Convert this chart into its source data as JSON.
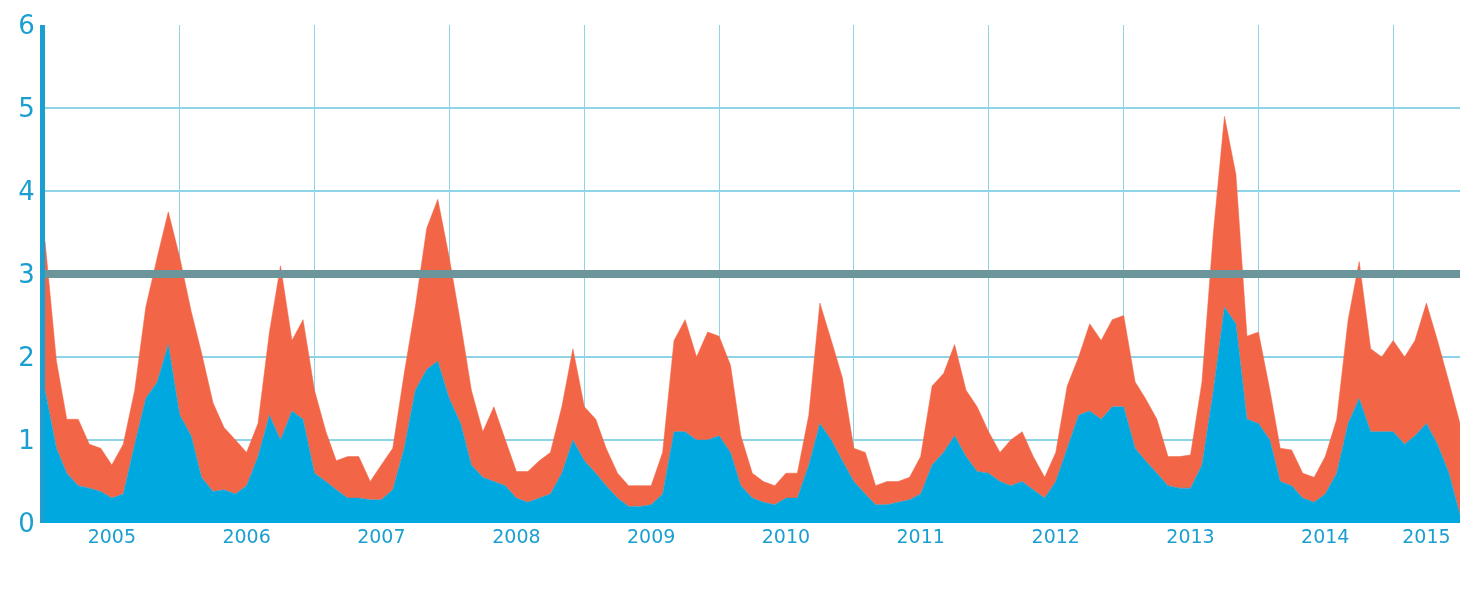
{
  "chart_data": {
    "type": "area",
    "stacked": true,
    "x": [
      "2005-01",
      "2005-02",
      "2005-03",
      "2005-04",
      "2005-05",
      "2005-06",
      "2005-07",
      "2005-08",
      "2005-09",
      "2005-10",
      "2005-11",
      "2005-12",
      "2006-01",
      "2006-02",
      "2006-03",
      "2006-04",
      "2006-05",
      "2006-06",
      "2006-07",
      "2006-08",
      "2006-09",
      "2006-10",
      "2006-11",
      "2006-12",
      "2007-01",
      "2007-02",
      "2007-03",
      "2007-04",
      "2007-05",
      "2007-06",
      "2007-07",
      "2007-08",
      "2007-09",
      "2007-10",
      "2007-11",
      "2007-12",
      "2008-01",
      "2008-02",
      "2008-03",
      "2008-04",
      "2008-05",
      "2008-06",
      "2008-07",
      "2008-08",
      "2008-09",
      "2008-10",
      "2008-11",
      "2008-12",
      "2009-01",
      "2009-02",
      "2009-03",
      "2009-04",
      "2009-05",
      "2009-06",
      "2009-07",
      "2009-08",
      "2009-09",
      "2009-10",
      "2009-11",
      "2009-12",
      "2010-01",
      "2010-02",
      "2010-03",
      "2010-04",
      "2010-05",
      "2010-06",
      "2010-07",
      "2010-08",
      "2010-09",
      "2010-10",
      "2010-11",
      "2010-12",
      "2011-01",
      "2011-02",
      "2011-03",
      "2011-04",
      "2011-05",
      "2011-06",
      "2011-07",
      "2011-08",
      "2011-09",
      "2011-10",
      "2011-11",
      "2011-12",
      "2012-01",
      "2012-02",
      "2012-03",
      "2012-04",
      "2012-05",
      "2012-06",
      "2012-07",
      "2012-08",
      "2012-09",
      "2012-10",
      "2012-11",
      "2012-12",
      "2013-01",
      "2013-02",
      "2013-03",
      "2013-04",
      "2013-05",
      "2013-06",
      "2013-07",
      "2013-08",
      "2013-09",
      "2013-10",
      "2013-11",
      "2013-12",
      "2014-01",
      "2014-02",
      "2014-03",
      "2014-04",
      "2014-05",
      "2014-06",
      "2014-07",
      "2014-08",
      "2014-09",
      "2014-10",
      "2014-11",
      "2014-12",
      "2015-01",
      "2015-02",
      "2015-03",
      "2015-04",
      "2015-05",
      "2015-06",
      "2015-07"
    ],
    "series": [
      {
        "color": "#00a8e0",
        "values": [
          1.6,
          0.9,
          0.6,
          0.45,
          0.42,
          0.38,
          0.3,
          0.35,
          0.95,
          1.5,
          1.7,
          2.15,
          1.3,
          1.05,
          0.55,
          0.38,
          0.4,
          0.35,
          0.45,
          0.8,
          1.3,
          1.0,
          1.35,
          1.25,
          0.6,
          0.5,
          0.4,
          0.3,
          0.3,
          0.28,
          0.28,
          0.4,
          0.9,
          1.6,
          1.85,
          1.95,
          1.5,
          1.2,
          0.7,
          0.55,
          0.5,
          0.45,
          0.3,
          0.25,
          0.3,
          0.35,
          0.6,
          1.0,
          0.75,
          0.6,
          0.45,
          0.3,
          0.2,
          0.2,
          0.22,
          0.35,
          1.1,
          1.1,
          1.0,
          1.0,
          1.05,
          0.85,
          0.45,
          0.3,
          0.25,
          0.22,
          0.3,
          0.3,
          0.7,
          1.2,
          1.0,
          0.75,
          0.5,
          0.35,
          0.22,
          0.22,
          0.25,
          0.28,
          0.35,
          0.7,
          0.85,
          1.05,
          0.8,
          0.62,
          0.6,
          0.5,
          0.45,
          0.5,
          0.4,
          0.3,
          0.5,
          0.9,
          1.3,
          1.35,
          1.25,
          1.4,
          1.4,
          0.9,
          0.75,
          0.6,
          0.45,
          0.42,
          0.42,
          0.7,
          1.6,
          2.6,
          2.4,
          1.25,
          1.2,
          1.0,
          0.5,
          0.45,
          0.3,
          0.25,
          0.35,
          0.6,
          1.2,
          1.5,
          1.1,
          1.1,
          1.1,
          0.95,
          1.05,
          1.2,
          0.95,
          0.6,
          0.1
        ]
      },
      {
        "color": "#f26546",
        "values": [
          1.8,
          1.05,
          0.65,
          0.8,
          0.53,
          0.52,
          0.4,
          0.6,
          0.65,
          1.1,
          1.5,
          1.6,
          1.9,
          1.5,
          1.5,
          1.07,
          0.75,
          0.65,
          0.4,
          0.4,
          1.0,
          2.1,
          0.85,
          1.2,
          1.0,
          0.6,
          0.35,
          0.5,
          0.5,
          0.22,
          0.42,
          0.5,
          0.9,
          1.0,
          1.7,
          1.95,
          1.7,
          1.2,
          0.9,
          0.55,
          0.9,
          0.55,
          0.32,
          0.37,
          0.45,
          0.5,
          0.8,
          1.1,
          0.65,
          0.65,
          0.45,
          0.3,
          0.25,
          0.25,
          0.23,
          0.5,
          1.1,
          1.35,
          1.0,
          1.3,
          1.2,
          1.05,
          0.6,
          0.3,
          0.25,
          0.23,
          0.3,
          0.3,
          0.6,
          1.45,
          1.2,
          1.0,
          0.4,
          0.5,
          0.23,
          0.28,
          0.25,
          0.27,
          0.45,
          0.95,
          0.95,
          1.1,
          0.8,
          0.78,
          0.5,
          0.35,
          0.55,
          0.6,
          0.4,
          0.25,
          0.35,
          0.75,
          0.7,
          1.05,
          0.95,
          1.05,
          1.1,
          0.8,
          0.75,
          0.65,
          0.35,
          0.38,
          0.4,
          1.0,
          1.9,
          2.3,
          1.8,
          1.0,
          1.1,
          0.6,
          0.4,
          0.43,
          0.3,
          0.3,
          0.45,
          0.65,
          1.25,
          1.65,
          1.0,
          0.9,
          1.1,
          1.05,
          1.15,
          1.45,
          1.25,
          1.1,
          1.1
        ]
      }
    ],
    "xlim": [
      "2005-01",
      "2015-07"
    ],
    "xticks": [
      {
        "value": "2005-01",
        "label": null
      },
      {
        "value": "2005-07",
        "label": "2005"
      },
      {
        "value": "2006-01",
        "label": null
      },
      {
        "value": "2006-07",
        "label": "2006"
      },
      {
        "value": "2007-01",
        "label": null
      },
      {
        "value": "2007-07",
        "label": "2007"
      },
      {
        "value": "2008-01",
        "label": null
      },
      {
        "value": "2008-07",
        "label": "2008"
      },
      {
        "value": "2009-01",
        "label": null
      },
      {
        "value": "2009-07",
        "label": "2009"
      },
      {
        "value": "2010-01",
        "label": null
      },
      {
        "value": "2010-07",
        "label": "2010"
      },
      {
        "value": "2011-01",
        "label": null
      },
      {
        "value": "2011-07",
        "label": "2011"
      },
      {
        "value": "2012-01",
        "label": null
      },
      {
        "value": "2012-07",
        "label": "2012"
      },
      {
        "value": "2013-01",
        "label": null
      },
      {
        "value": "2013-07",
        "label": "2013"
      },
      {
        "value": "2014-01",
        "label": null
      },
      {
        "value": "2014-07",
        "label": "2014"
      },
      {
        "value": "2015-01",
        "label": null
      },
      {
        "value": "2015-04",
        "label": "2015"
      }
    ],
    "ylim": [
      0,
      6
    ],
    "yticks": [
      0,
      1,
      2,
      3,
      4,
      5,
      6
    ],
    "grid": true,
    "ref_lines": [
      {
        "axis": "y",
        "value": 3,
        "color": "#6b959b"
      }
    ]
  }
}
